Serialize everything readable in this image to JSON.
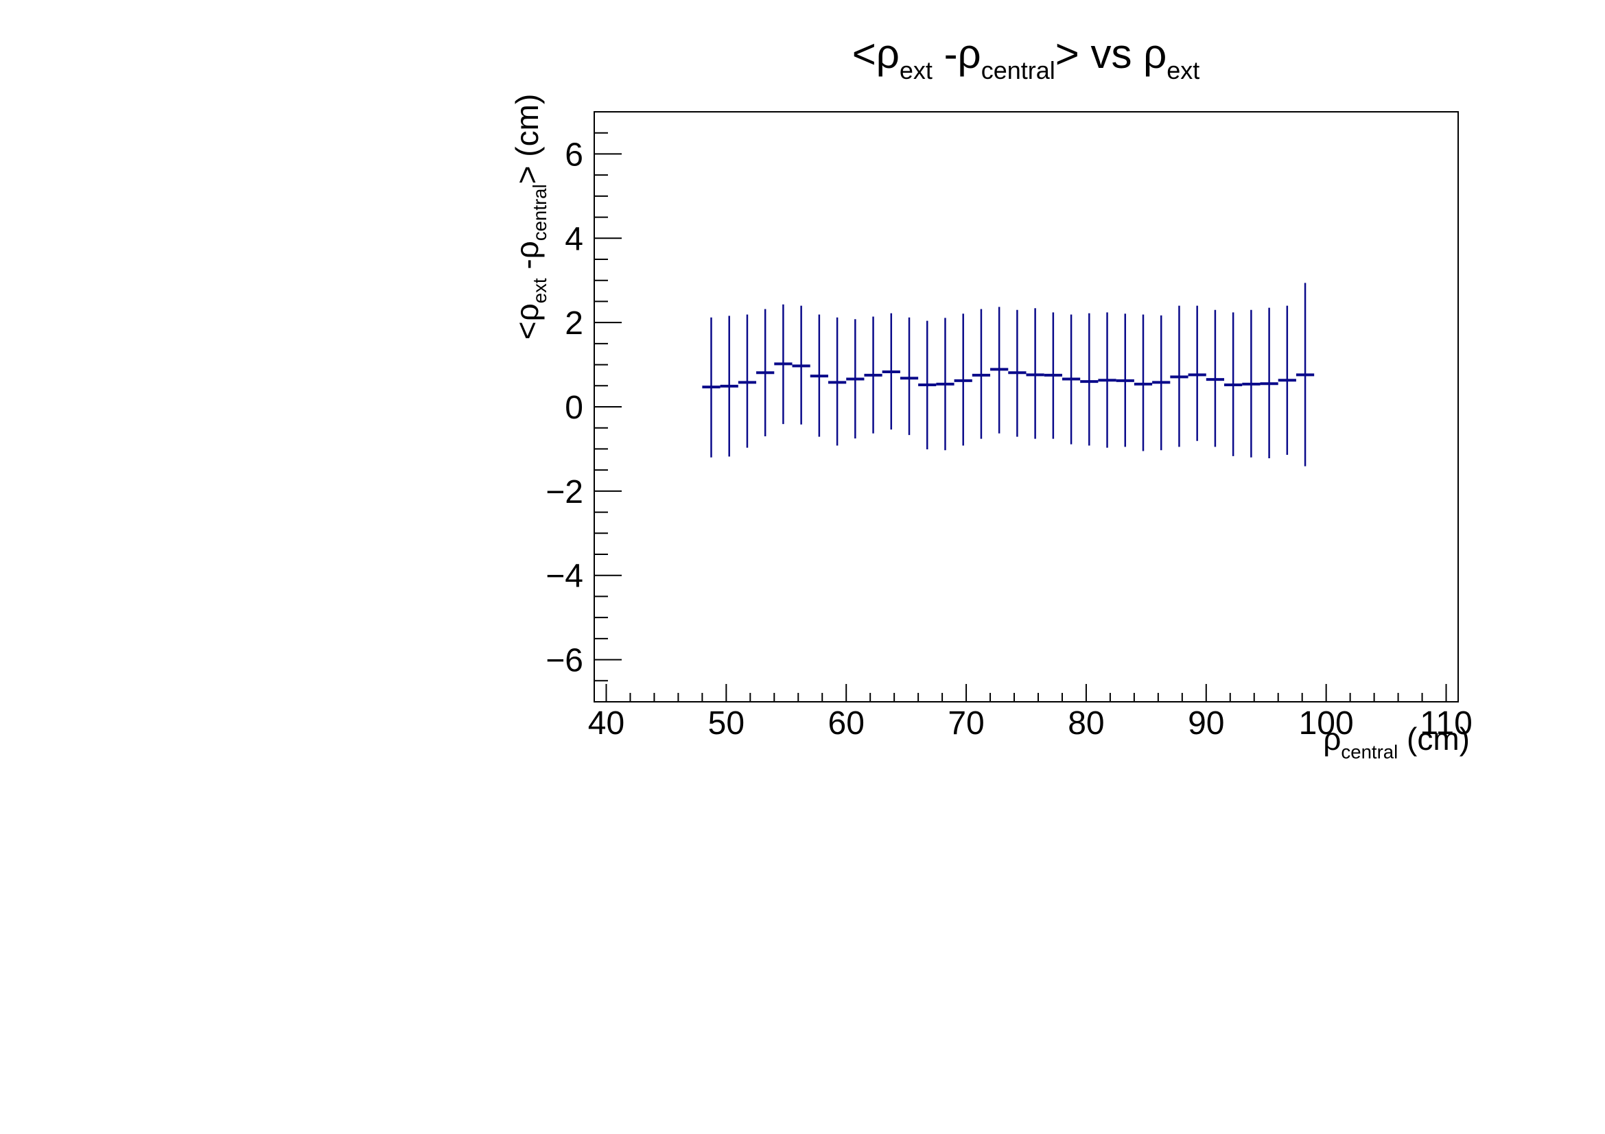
{
  "title": {
    "parts": [
      {
        "t": "<ρ",
        "sub": false
      },
      {
        "t": "ext",
        "sub": true
      },
      {
        "t": " -ρ",
        "sub": false
      },
      {
        "t": "central",
        "sub": true
      },
      {
        "t": "> vs ρ",
        "sub": false
      },
      {
        "t": "ext",
        "sub": true
      }
    ]
  },
  "chart_data": {
    "type": "scatter",
    "subtype": "profile-with-error-bars",
    "title_plain": "<ρ_ext - ρ_central> vs ρ_ext",
    "background": "#ffffff",
    "frame_color": "#000000",
    "legend": "none",
    "grid": false,
    "x_axis": {
      "label_plain": "ρ_central (cm)",
      "label_parts": [
        {
          "t": "ρ",
          "sub": false
        },
        {
          "t": "central",
          "sub": true
        },
        {
          "t": " (cm)",
          "sub": false
        }
      ],
      "min": 39,
      "max": 111,
      "major_ticks": [
        40,
        50,
        60,
        70,
        80,
        90,
        100,
        110
      ],
      "tick_labels": [
        "40",
        "50",
        "60",
        "70",
        "80",
        "90",
        "100",
        "110"
      ],
      "minor_step": 2
    },
    "y_axis": {
      "label_plain": "<ρ_ext - ρ_central>  (cm)",
      "label_parts": [
        {
          "t": "<ρ",
          "sub": false
        },
        {
          "t": "ext",
          "sub": true
        },
        {
          "t": " -ρ",
          "sub": false
        },
        {
          "t": "central",
          "sub": true
        },
        {
          "t": ">  (cm)",
          "sub": false
        }
      ],
      "min": -7,
      "max": 7,
      "major_ticks": [
        -6,
        -4,
        -2,
        0,
        2,
        4,
        6
      ],
      "tick_labels": [
        "−6",
        "−4",
        "−2",
        "0",
        "2",
        "4",
        "6"
      ],
      "minor_step": 0.5
    },
    "series": [
      {
        "name": "mean-rho-difference",
        "color": "#0a0a8a",
        "x_half_width": 0.75,
        "x": [
          48.75,
          50.25,
          51.75,
          53.25,
          54.75,
          56.25,
          57.75,
          59.25,
          60.75,
          62.25,
          63.75,
          65.25,
          66.75,
          68.25,
          69.75,
          71.25,
          72.75,
          74.25,
          75.75,
          77.25,
          78.75,
          80.25,
          81.75,
          83.25,
          84.75,
          86.25,
          87.75,
          89.25,
          90.75,
          92.25,
          93.75,
          95.25,
          96.75,
          98.25
        ],
        "y": [
          0.47,
          0.49,
          0.58,
          0.81,
          1.02,
          0.97,
          0.73,
          0.58,
          0.66,
          0.75,
          0.83,
          0.68,
          0.52,
          0.54,
          0.62,
          0.75,
          0.89,
          0.81,
          0.76,
          0.75,
          0.66,
          0.6,
          0.63,
          0.62,
          0.54,
          0.58,
          0.71,
          0.76,
          0.65,
          0.52,
          0.54,
          0.55,
          0.63,
          0.76
        ],
        "y_low": [
          -1.2,
          -1.18,
          -0.97,
          -0.7,
          -0.41,
          -0.42,
          -0.71,
          -0.92,
          -0.75,
          -0.63,
          -0.54,
          -0.67,
          -1.01,
          -1.03,
          -0.92,
          -0.76,
          -0.63,
          -0.71,
          -0.76,
          -0.76,
          -0.89,
          -0.92,
          -0.97,
          -0.95,
          -1.05,
          -1.03,
          -0.95,
          -0.81,
          -0.95,
          -1.17,
          -1.2,
          -1.22,
          -1.14,
          -1.41
        ],
        "y_high": [
          2.12,
          2.16,
          2.19,
          2.32,
          2.43,
          2.4,
          2.19,
          2.12,
          2.08,
          2.14,
          2.22,
          2.12,
          2.04,
          2.11,
          2.21,
          2.32,
          2.37,
          2.3,
          2.34,
          2.24,
          2.19,
          2.22,
          2.24,
          2.21,
          2.19,
          2.17,
          2.4,
          2.4,
          2.3,
          2.24,
          2.3,
          2.35,
          2.4,
          2.94
        ]
      }
    ]
  }
}
